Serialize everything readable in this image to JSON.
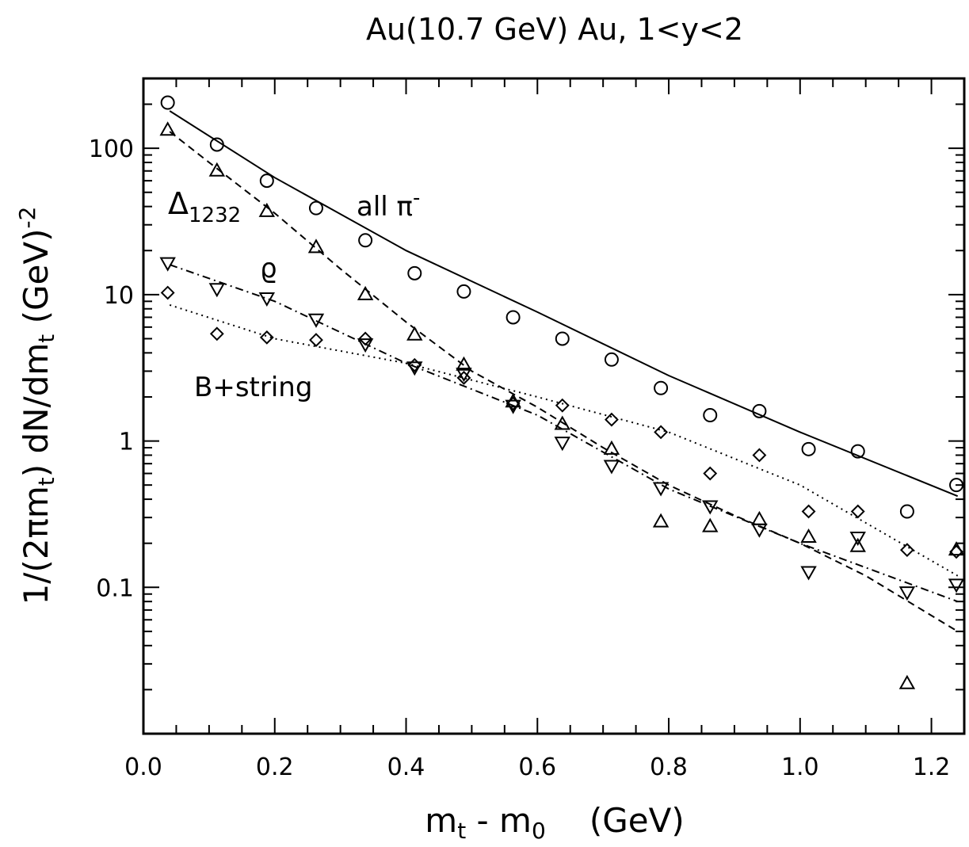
{
  "chart_data": {
    "type": "scatter",
    "title": "Au(10.7  GeV)  Au,  1<y<2",
    "xlabel": {
      "main": "m",
      "sub1": "t",
      "mid": " - m",
      "sub2": "0",
      "unit": "(GeV)"
    },
    "ylabel": {
      "a": "1/(2πm",
      "a_sub": "t",
      "b": ")  dN/dm",
      "b_sub": "t",
      "c": "  (GeV)",
      "c_sup": "-2"
    },
    "xlim": [
      0.0,
      1.25
    ],
    "ylim": [
      0.01,
      300
    ],
    "yscale": "log",
    "xticks": [
      0.0,
      0.2,
      0.4,
      0.6,
      0.8,
      1.0,
      1.2
    ],
    "xtick_labels": [
      "0.0",
      "0.2",
      "0.4",
      "0.6",
      "0.8",
      "1.0",
      "1.2"
    ],
    "yticks": [
      0.1,
      1,
      10,
      100
    ],
    "ytick_labels": [
      "0.1",
      "1",
      "10",
      "100"
    ],
    "grid": false,
    "annotations": {
      "pi": {
        "text": "all  π",
        "sup": "-"
      },
      "delta": {
        "text": "Δ",
        "sub": "1232"
      },
      "rho": {
        "text": "ϱ"
      },
      "b_string": {
        "text": "B+string"
      }
    },
    "series": [
      {
        "marker": "circle",
        "line": "solid",
        "x": [
          0.037,
          0.112,
          0.188,
          0.263,
          0.338,
          0.413,
          0.488,
          0.563,
          0.638,
          0.713,
          0.788,
          0.863,
          0.938,
          1.013,
          1.088,
          1.163,
          1.238
        ],
        "y": [
          205,
          106,
          60,
          39,
          23.5,
          14,
          10.5,
          7,
          5,
          3.6,
          2.3,
          1.5,
          1.6,
          0.88,
          0.85,
          0.33,
          0.5
        ]
      },
      {
        "marker": "triangle-up",
        "line": "dashed",
        "x": [
          0.037,
          0.112,
          0.188,
          0.263,
          0.338,
          0.413,
          0.488,
          0.563,
          0.638,
          0.713,
          0.788,
          0.863,
          0.938,
          1.013,
          1.088,
          1.163,
          1.238
        ],
        "y": [
          133,
          70,
          37,
          21,
          10,
          5.3,
          3.3,
          1.85,
          1.3,
          0.88,
          0.28,
          0.26,
          0.29,
          0.22,
          0.19,
          0.022,
          0.18
        ]
      },
      {
        "marker": "triangle-down",
        "line": "dashdot",
        "x": [
          0.037,
          0.112,
          0.188,
          0.263,
          0.338,
          0.413,
          0.488,
          0.563,
          0.638,
          0.713,
          0.788,
          0.863,
          0.938,
          1.013,
          1.088,
          1.163,
          1.238
        ],
        "y": [
          16.5,
          11,
          9.5,
          6.8,
          4.6,
          3.2,
          2.9,
          1.75,
          0.98,
          0.68,
          0.48,
          0.36,
          0.25,
          0.128,
          0.22,
          0.093,
          0.105
        ]
      },
      {
        "marker": "diamond",
        "line": "dotted",
        "x": [
          0.037,
          0.112,
          0.188,
          0.263,
          0.338,
          0.413,
          0.488,
          0.563,
          0.638,
          0.713,
          0.788,
          0.863,
          0.938,
          1.013,
          1.088,
          1.163,
          1.238
        ],
        "y": [
          10.3,
          5.4,
          5.1,
          4.9,
          5.0,
          3.3,
          2.7,
          1.8,
          1.75,
          1.4,
          1.15,
          0.6,
          0.8,
          0.33,
          0.33,
          0.18,
          0.175
        ]
      }
    ],
    "fits": [
      {
        "line": "solid",
        "x": [
          0.04,
          0.2,
          0.4,
          0.6,
          0.8,
          1.0,
          1.24
        ],
        "y": [
          180,
          63,
          20,
          7.6,
          2.8,
          1.15,
          0.42
        ]
      },
      {
        "line": "dashed",
        "x": [
          0.04,
          0.1,
          0.2,
          0.3,
          0.4,
          0.5,
          0.6,
          0.7,
          0.8,
          0.9,
          1.0,
          1.1,
          1.24
        ],
        "y": [
          130,
          80,
          36,
          15,
          6.5,
          3.0,
          1.7,
          0.9,
          0.5,
          0.31,
          0.2,
          0.12,
          0.05
        ]
      },
      {
        "line": "dashdot",
        "x": [
          0.04,
          0.2,
          0.4,
          0.6,
          0.8,
          1.0,
          1.24
        ],
        "y": [
          16,
          9,
          3.4,
          1.5,
          0.47,
          0.2,
          0.08
        ]
      },
      {
        "line": "dotted",
        "x": [
          0.04,
          0.2,
          0.4,
          0.6,
          0.8,
          1.0,
          1.24
        ],
        "y": [
          8.5,
          5.0,
          3.4,
          2.0,
          1.15,
          0.5,
          0.12
        ]
      }
    ]
  }
}
